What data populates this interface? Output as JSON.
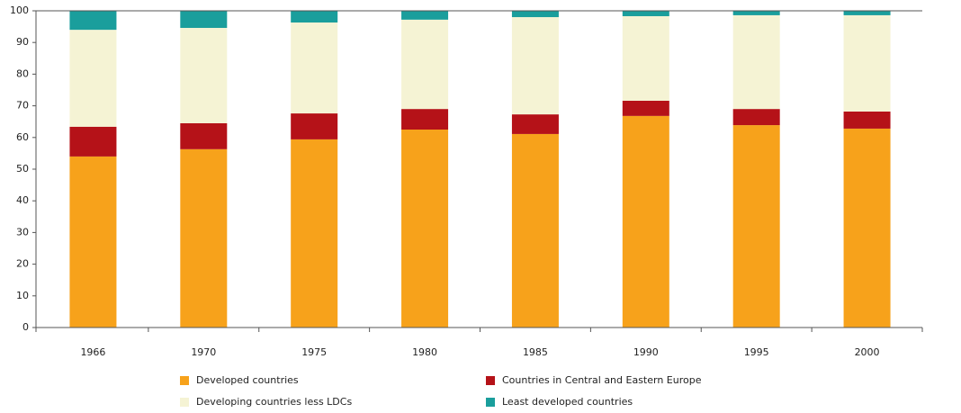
{
  "chart_data": {
    "type": "stacked_bar",
    "categories": [
      "1966",
      "1970",
      "1975",
      "1980",
      "1985",
      "1990",
      "1995",
      "2000"
    ],
    "series": [
      {
        "name": "Developed countries",
        "color": "#f7a21b",
        "values": [
          54.0,
          56.3,
          59.4,
          62.5,
          61.1,
          66.8,
          63.9,
          62.8
        ]
      },
      {
        "name": "Countries in Central and Eastern Europe",
        "color": "#b51218",
        "values": [
          9.4,
          8.2,
          8.2,
          6.5,
          6.2,
          4.8,
          5.1,
          5.4
        ]
      },
      {
        "name": "Developing countries less LDCs",
        "color": "#f5f3d4",
        "values": [
          30.6,
          30.1,
          28.7,
          28.2,
          30.7,
          26.7,
          29.6,
          30.4
        ]
      },
      {
        "name": "Least developed countries",
        "color": "#1a9e9c",
        "values": [
          6.0,
          5.4,
          3.7,
          2.8,
          2.0,
          1.7,
          1.4,
          1.4
        ]
      }
    ],
    "ylim": [
      0,
      100
    ],
    "yticks": [
      0,
      10,
      20,
      30,
      40,
      50,
      60,
      70,
      80,
      90,
      100
    ],
    "grid": false
  }
}
